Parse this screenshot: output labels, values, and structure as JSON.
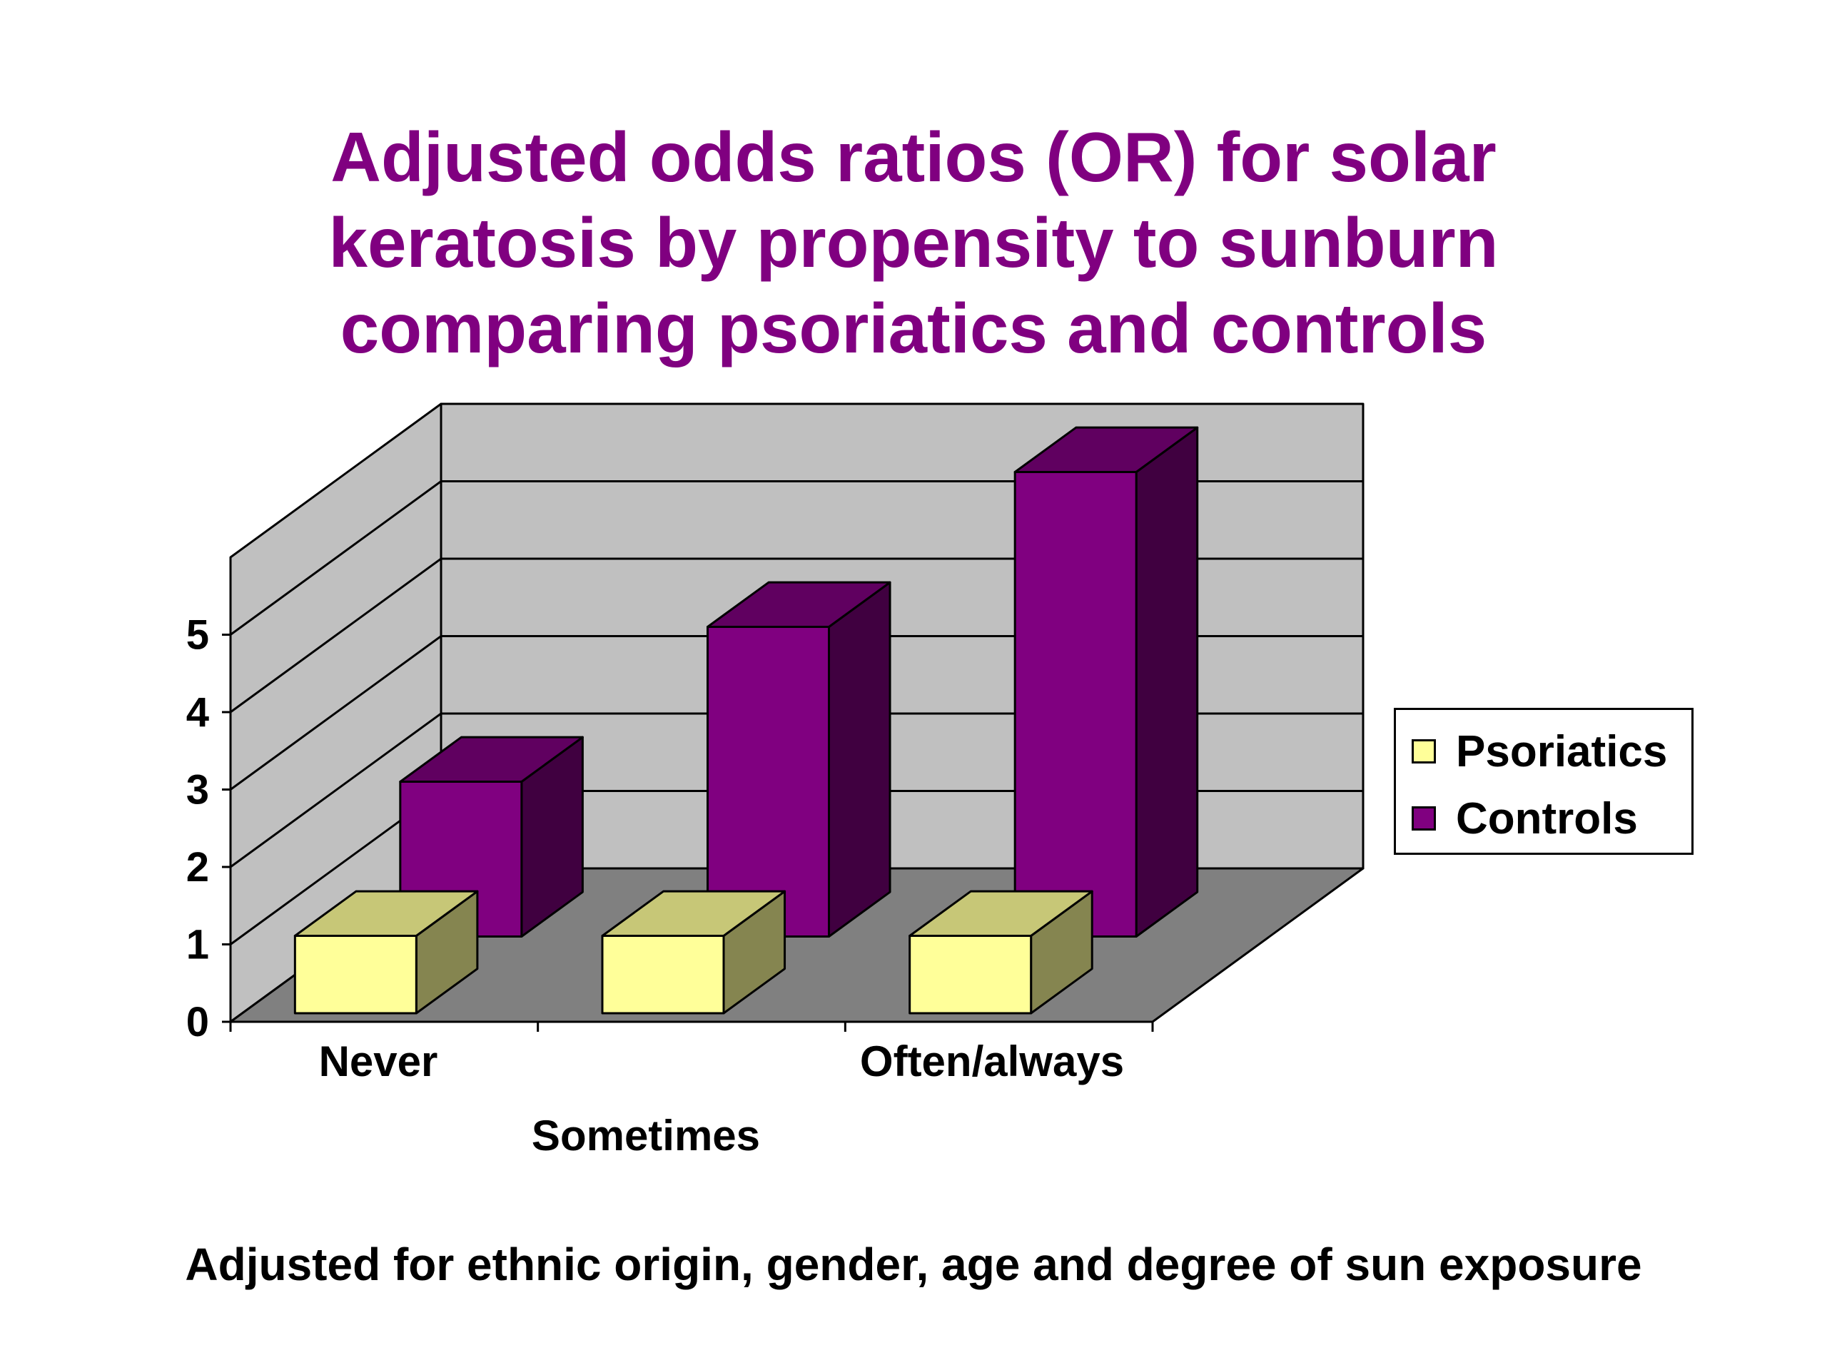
{
  "title_lines": [
    "Adjusted odds ratios (OR) for solar",
    "keratosis by propensity to sunburn",
    "comparing psoriatics and controls"
  ],
  "footnote": "Adjusted for ethnic origin, gender, age and degree of sun exposure",
  "legend": {
    "position": "right",
    "items": [
      {
        "label": "Psoriatics",
        "color": "#ffff99"
      },
      {
        "label": "Controls",
        "color": "#800080"
      }
    ]
  },
  "chart_data": {
    "type": "bar",
    "style": "3d-stacked-depth",
    "categories": [
      "Never",
      "Sometimes",
      "Often/always"
    ],
    "series": [
      {
        "name": "Psoriatics",
        "values": [
          1,
          1,
          1
        ],
        "color": "#ffff99"
      },
      {
        "name": "Controls",
        "values": [
          2,
          4,
          6
        ],
        "color": "#800080"
      }
    ],
    "yticks": [
      0,
      1,
      2,
      3,
      4,
      5
    ],
    "ylim": [
      0,
      6
    ],
    "grid": true,
    "colors": {
      "back_wall": "#c0c0c0",
      "side_wall": "#c0c0c0",
      "floor": "#808080"
    }
  }
}
